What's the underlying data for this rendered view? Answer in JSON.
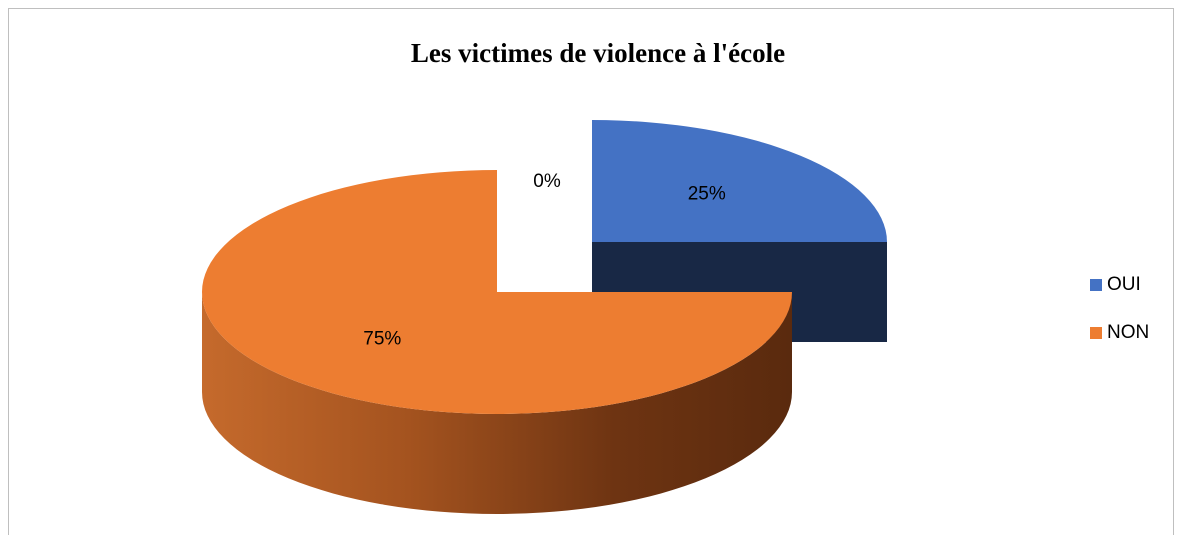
{
  "chart_data": {
    "type": "pie",
    "title": "Les victimes de violence à l'école",
    "categories": [
      "OUI",
      "NON",
      null
    ],
    "values": [
      25,
      75,
      0
    ],
    "value_labels": [
      "25%",
      "75%",
      "0%"
    ],
    "colors": [
      "#4472c4",
      "#ed7d31",
      "#a5a5a5"
    ],
    "legend": "right"
  }
}
